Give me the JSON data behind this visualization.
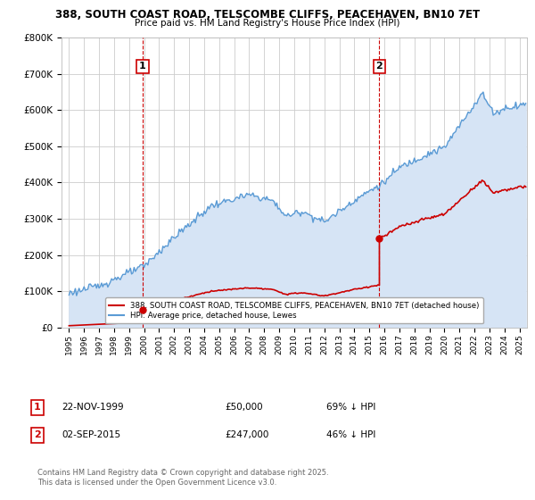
{
  "title_line1": "388, SOUTH COAST ROAD, TELSCOMBE CLIFFS, PEACEHAVEN, BN10 7ET",
  "title_line2": "Price paid vs. HM Land Registry's House Price Index (HPI)",
  "legend_label_red": "388, SOUTH COAST ROAD, TELSCOMBE CLIFFS, PEACEHAVEN, BN10 7ET (detached house)",
  "legend_label_blue": "HPI: Average price, detached house, Lewes",
  "footer": "Contains HM Land Registry data © Crown copyright and database right 2025.\nThis data is licensed under the Open Government Licence v3.0.",
  "annotation1_label": "1",
  "annotation1_date": "22-NOV-1999",
  "annotation1_price": "£50,000",
  "annotation1_hpi": "69% ↓ HPI",
  "annotation2_label": "2",
  "annotation2_date": "02-SEP-2015",
  "annotation2_price": "£247,000",
  "annotation2_hpi": "46% ↓ HPI",
  "red_color": "#cc0000",
  "blue_color": "#5b9bd5",
  "blue_fill": "#d6e4f5",
  "background_color": "#ffffff",
  "grid_color": "#cccccc",
  "annotation_color": "#cc0000",
  "xmin": 1994.5,
  "xmax": 2025.5,
  "ymin": 0,
  "ymax": 800000,
  "purchase1_year": 1999.9,
  "purchase1_price": 50000,
  "purchase2_year": 2015.67,
  "purchase2_price": 247000
}
